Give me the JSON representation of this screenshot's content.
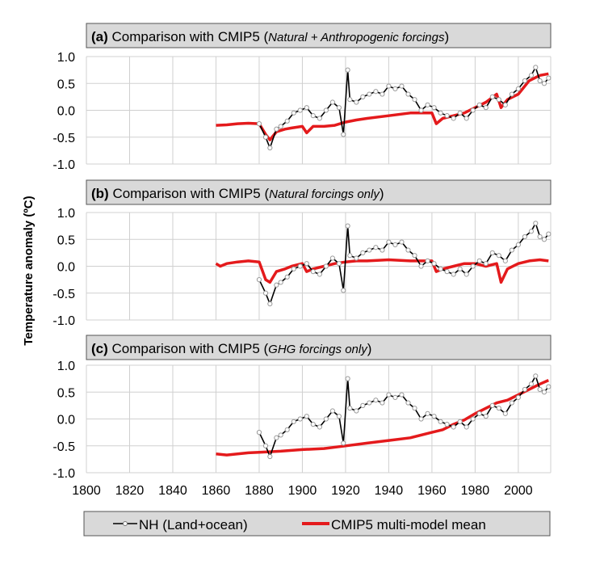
{
  "ylabel": "Temperature anomaly (ºC)",
  "legend": {
    "items": [
      {
        "label": "NH (Land+ocean)",
        "color": "#000000",
        "marker": "open-circle"
      },
      {
        "label": "CMIP5 multi-model mean",
        "color": "#e41a1c",
        "marker": "none"
      }
    ]
  },
  "colors": {
    "observations": "#000000",
    "observation_markers": "#9a9a9a",
    "model": "#e41a1c",
    "title_bg": "#d9d9d9",
    "grid": "#d0d0d0"
  },
  "xaxis": {
    "ticks": [
      "1800",
      "1820",
      "1840",
      "1860",
      "1880",
      "1900",
      "1920",
      "1940",
      "1960",
      "1980",
      "2000"
    ],
    "range": [
      1800,
      2015
    ]
  },
  "yaxis": {
    "ticks": [
      "1.0",
      "0.5",
      "0.0",
      "-0.5",
      "-1.0"
    ],
    "range": [
      -1.0,
      1.0
    ]
  },
  "chart_data": [
    {
      "type": "line",
      "title": "(a) Comparison with CMIP5 (Natural + Anthropogenic forcings)",
      "title_parts": {
        "label": "(a)",
        "main": " Comparison with CMIP5 (",
        "italic": "Natural + Anthropogenic forcings",
        "end": ")"
      },
      "xlabel": "",
      "ylabel": "Temperature anomaly (ºC)",
      "xlim": [
        1800,
        2015
      ],
      "ylim": [
        -1.0,
        1.0
      ],
      "grid": true,
      "series": [
        {
          "name": "NH (Land+ocean)",
          "x": [
            1880,
            1883,
            1885,
            1888,
            1890,
            1893,
            1896,
            1899,
            1902,
            1905,
            1908,
            1911,
            1914,
            1917,
            1919,
            1921,
            1922,
            1925,
            1928,
            1931,
            1934,
            1937,
            1940,
            1943,
            1946,
            1949,
            1952,
            1955,
            1958,
            1961,
            1964,
            1967,
            1970,
            1973,
            1976,
            1979,
            1982,
            1985,
            1988,
            1991,
            1994,
            1997,
            2000,
            2003,
            2006,
            2008,
            2010,
            2012,
            2014
          ],
          "y": [
            -0.25,
            -0.5,
            -0.7,
            -0.35,
            -0.3,
            -0.2,
            -0.05,
            0.0,
            0.05,
            -0.1,
            -0.15,
            0.0,
            0.15,
            0.05,
            -0.45,
            0.75,
            0.2,
            0.15,
            0.25,
            0.3,
            0.35,
            0.3,
            0.45,
            0.4,
            0.45,
            0.3,
            0.2,
            0.0,
            0.1,
            0.05,
            -0.05,
            -0.1,
            -0.15,
            -0.05,
            -0.15,
            0.0,
            0.1,
            0.05,
            0.25,
            0.2,
            0.1,
            0.3,
            0.4,
            0.55,
            0.65,
            0.8,
            0.55,
            0.5,
            0.6
          ]
        },
        {
          "name": "CMIP5 multi-model mean",
          "x": [
            1860,
            1865,
            1870,
            1875,
            1880,
            1883,
            1885,
            1888,
            1892,
            1895,
            1900,
            1902,
            1905,
            1910,
            1915,
            1920,
            1925,
            1930,
            1940,
            1950,
            1960,
            1962,
            1965,
            1970,
            1975,
            1980,
            1985,
            1990,
            1992,
            1995,
            2000,
            2005,
            2010,
            2014
          ],
          "y": [
            -0.28,
            -0.27,
            -0.25,
            -0.24,
            -0.25,
            -0.45,
            -0.55,
            -0.4,
            -0.35,
            -0.33,
            -0.3,
            -0.42,
            -0.3,
            -0.3,
            -0.28,
            -0.22,
            -0.18,
            -0.15,
            -0.1,
            -0.05,
            -0.05,
            -0.25,
            -0.15,
            -0.1,
            -0.05,
            0.05,
            0.15,
            0.3,
            0.05,
            0.2,
            0.3,
            0.55,
            0.65,
            0.68
          ]
        }
      ]
    },
    {
      "type": "line",
      "title": "(b) Comparison with CMIP5 (Natural forcings only)",
      "title_parts": {
        "label": "(b)",
        "main": " Comparison with CMIP5 (",
        "italic": "Natural forcings only",
        "end": ")"
      },
      "xlabel": "",
      "ylabel": "Temperature anomaly (ºC)",
      "xlim": [
        1800,
        2015
      ],
      "ylim": [
        -1.0,
        1.0
      ],
      "grid": true,
      "series": [
        {
          "name": "NH (Land+ocean)",
          "x": [
            1880,
            1883,
            1885,
            1888,
            1890,
            1893,
            1896,
            1899,
            1902,
            1905,
            1908,
            1911,
            1914,
            1917,
            1919,
            1921,
            1922,
            1925,
            1928,
            1931,
            1934,
            1937,
            1940,
            1943,
            1946,
            1949,
            1952,
            1955,
            1958,
            1961,
            1964,
            1967,
            1970,
            1973,
            1976,
            1979,
            1982,
            1985,
            1988,
            1991,
            1994,
            1997,
            2000,
            2003,
            2006,
            2008,
            2010,
            2012,
            2014
          ],
          "y": [
            -0.25,
            -0.5,
            -0.7,
            -0.35,
            -0.3,
            -0.2,
            -0.05,
            0.0,
            0.05,
            -0.1,
            -0.15,
            0.0,
            0.15,
            0.05,
            -0.45,
            0.75,
            0.2,
            0.15,
            0.25,
            0.3,
            0.35,
            0.3,
            0.45,
            0.4,
            0.45,
            0.3,
            0.2,
            0.0,
            0.1,
            0.05,
            -0.05,
            -0.1,
            -0.15,
            -0.05,
            -0.15,
            0.0,
            0.1,
            0.05,
            0.25,
            0.2,
            0.1,
            0.3,
            0.4,
            0.55,
            0.65,
            0.8,
            0.55,
            0.5,
            0.6
          ]
        },
        {
          "name": "CMIP5 multi-model mean",
          "x": [
            1860,
            1862,
            1865,
            1870,
            1875,
            1880,
            1883,
            1885,
            1888,
            1892,
            1895,
            1900,
            1902,
            1905,
            1910,
            1915,
            1920,
            1925,
            1930,
            1940,
            1950,
            1960,
            1962,
            1965,
            1970,
            1975,
            1980,
            1985,
            1990,
            1992,
            1995,
            2000,
            2005,
            2010,
            2014
          ],
          "y": [
            0.05,
            0.0,
            0.05,
            0.08,
            0.1,
            0.08,
            -0.25,
            -0.3,
            -0.1,
            -0.05,
            0.0,
            0.05,
            -0.1,
            -0.05,
            0.0,
            0.05,
            0.08,
            0.1,
            0.1,
            0.12,
            0.1,
            0.1,
            -0.1,
            -0.05,
            0.0,
            0.05,
            0.05,
            0.0,
            0.05,
            -0.3,
            -0.05,
            0.05,
            0.1,
            0.12,
            0.1
          ]
        }
      ]
    },
    {
      "type": "line",
      "title": "(c) Comparison with CMIP5 (GHG forcings only)",
      "title_parts": {
        "label": "(c)",
        "main": " Comparison with CMIP5 (",
        "italic": "GHG forcings only",
        "end": ")"
      },
      "xlabel": "",
      "ylabel": "Temperature anomaly (ºC)",
      "xlim": [
        1800,
        2015
      ],
      "ylim": [
        -1.0,
        1.0
      ],
      "grid": true,
      "series": [
        {
          "name": "NH (Land+ocean)",
          "x": [
            1880,
            1883,
            1885,
            1888,
            1890,
            1893,
            1896,
            1899,
            1902,
            1905,
            1908,
            1911,
            1914,
            1917,
            1919,
            1921,
            1922,
            1925,
            1928,
            1931,
            1934,
            1937,
            1940,
            1943,
            1946,
            1949,
            1952,
            1955,
            1958,
            1961,
            1964,
            1967,
            1970,
            1973,
            1976,
            1979,
            1982,
            1985,
            1988,
            1991,
            1994,
            1997,
            2000,
            2003,
            2006,
            2008,
            2010,
            2012,
            2014
          ],
          "y": [
            -0.25,
            -0.5,
            -0.7,
            -0.35,
            -0.3,
            -0.2,
            -0.05,
            0.0,
            0.05,
            -0.1,
            -0.15,
            0.0,
            0.15,
            0.05,
            -0.45,
            0.75,
            0.2,
            0.15,
            0.25,
            0.3,
            0.35,
            0.3,
            0.45,
            0.4,
            0.45,
            0.3,
            0.2,
            0.0,
            0.1,
            0.05,
            -0.05,
            -0.1,
            -0.15,
            -0.05,
            -0.15,
            0.0,
            0.1,
            0.05,
            0.25,
            0.2,
            0.1,
            0.3,
            0.4,
            0.55,
            0.65,
            0.8,
            0.55,
            0.5,
            0.6
          ]
        },
        {
          "name": "CMIP5 multi-model mean",
          "x": [
            1860,
            1865,
            1870,
            1875,
            1880,
            1890,
            1900,
            1910,
            1920,
            1930,
            1940,
            1950,
            1960,
            1965,
            1970,
            1975,
            1980,
            1985,
            1990,
            1995,
            2000,
            2005,
            2010,
            2014
          ],
          "y": [
            -0.65,
            -0.67,
            -0.65,
            -0.63,
            -0.62,
            -0.6,
            -0.57,
            -0.55,
            -0.5,
            -0.45,
            -0.4,
            -0.35,
            -0.25,
            -0.2,
            -0.1,
            -0.02,
            0.1,
            0.2,
            0.3,
            0.35,
            0.45,
            0.55,
            0.65,
            0.72
          ]
        }
      ]
    }
  ]
}
